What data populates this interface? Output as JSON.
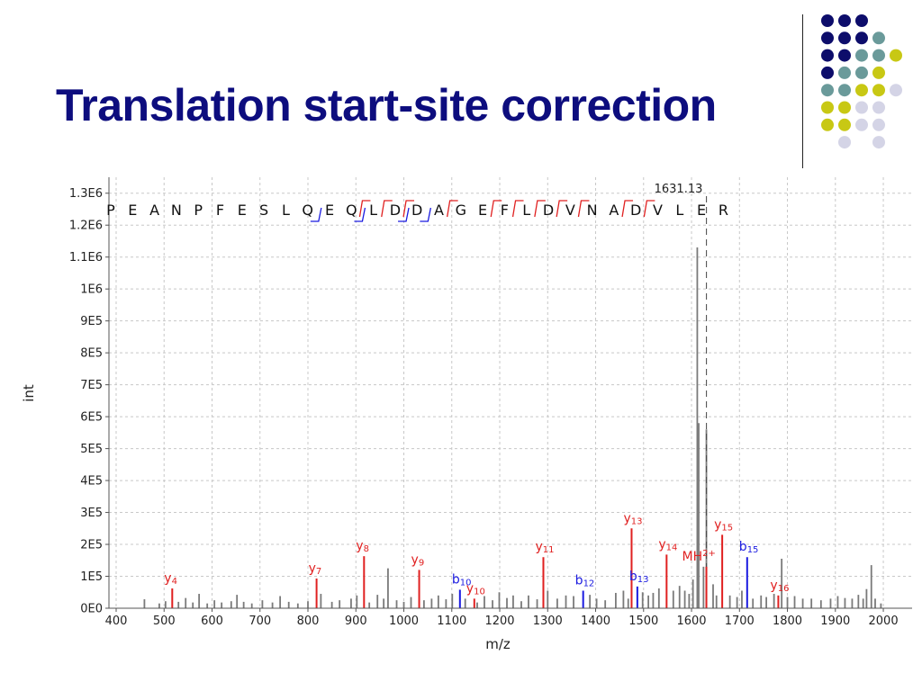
{
  "slide": {
    "title": "Translation start-site correction"
  },
  "decor": {
    "dot_colors": {
      "navy": "#0d0d6b",
      "teal": "#6a9a9a",
      "yellow": "#c8c814",
      "lavender": "#d4d4e6"
    },
    "dot_rows": [
      [
        "navy",
        "navy",
        "navy",
        null,
        null
      ],
      [
        "navy",
        "navy",
        "navy",
        "teal",
        null
      ],
      [
        "navy",
        "navy",
        "teal",
        "teal",
        "yellow"
      ],
      [
        "navy",
        "teal",
        "teal",
        "yellow",
        null
      ],
      [
        "teal",
        "teal",
        "yellow",
        "yellow",
        "lavender"
      ],
      [
        "yellow",
        "yellow",
        "lavender",
        "lavender",
        null
      ],
      [
        "yellow",
        "yellow",
        "lavender",
        "lavender",
        null
      ],
      [
        null,
        "lavender",
        null,
        "lavender",
        null
      ]
    ]
  },
  "chart_data": {
    "type": "bar",
    "title": "",
    "xlabel": "m/z",
    "ylabel": "int",
    "xlim": [
      385,
      2060
    ],
    "ylim": [
      0,
      1350000
    ],
    "x_ticks": [
      400,
      500,
      600,
      700,
      800,
      900,
      1000,
      1100,
      1200,
      1300,
      1400,
      1500,
      1600,
      1700,
      1800,
      1900,
      2000
    ],
    "x_tick_labels": [
      "400",
      "500",
      "600",
      "700",
      "800",
      "900",
      "1000",
      "1100",
      "1200",
      "1300",
      "1400",
      "1500",
      "1600",
      "1700",
      "1800",
      "1900",
      "2000"
    ],
    "y_ticks": [
      0,
      100000,
      200000,
      300000,
      400000,
      500000,
      600000,
      700000,
      800000,
      900000,
      1000000,
      1100000,
      1200000,
      1300000
    ],
    "y_tick_labels": [
      "0E0",
      "1E5",
      "2E5",
      "3E5",
      "4E5",
      "5E5",
      "6E5",
      "7E5",
      "8E5",
      "9E5",
      "1E6",
      "1.1E6",
      "1.2E6",
      "1.3E6"
    ],
    "grid": true,
    "colors": {
      "y_ion": "#e02020",
      "b_ion": "#1a1ae0",
      "unmatched": "#7a7a7a",
      "axis": "#555555"
    },
    "precursor_marker": {
      "mz": 1631.13,
      "label": "1631.13"
    },
    "sequence": [
      "P",
      "E",
      "A",
      "N",
      "P",
      "F",
      "E",
      "S",
      "L",
      "Q",
      "E",
      "Q",
      "L",
      "D",
      "D",
      "A",
      "G",
      "E",
      "F",
      "L",
      "D",
      "V",
      "N",
      "A",
      "D",
      "V",
      "L",
      "E",
      "R"
    ],
    "b_breaks_after": [
      10,
      12,
      14,
      15
    ],
    "y_breaks_before": [
      13,
      14,
      15,
      17,
      19,
      20,
      21,
      22,
      23,
      25,
      26
    ],
    "matched_peaks": [
      {
        "ion": "y",
        "num": "4",
        "mz": 517,
        "intensity": 62000,
        "text": "y",
        "sub": "4"
      },
      {
        "ion": "y",
        "num": "7",
        "mz": 818,
        "intensity": 93000,
        "text": "y",
        "sub": "7"
      },
      {
        "ion": "y",
        "num": "8",
        "mz": 917,
        "intensity": 163000,
        "text": "y",
        "sub": "8"
      },
      {
        "ion": "y",
        "num": "9",
        "mz": 1032,
        "intensity": 120000,
        "text": "y",
        "sub": "9"
      },
      {
        "ion": "b",
        "num": "10",
        "mz": 1117,
        "intensity": 58000,
        "text": "b",
        "sub": "10"
      },
      {
        "ion": "y",
        "num": "10",
        "mz": 1147,
        "intensity": 30000,
        "text": "y",
        "sub": "10"
      },
      {
        "ion": "y",
        "num": "11",
        "mz": 1291,
        "intensity": 160000,
        "text": "y",
        "sub": "11"
      },
      {
        "ion": "b",
        "num": "12",
        "mz": 1374,
        "intensity": 55000,
        "text": "b",
        "sub": "12"
      },
      {
        "ion": "y",
        "num": "13",
        "mz": 1475,
        "intensity": 250000,
        "text": "y",
        "sub": "13"
      },
      {
        "ion": "b",
        "num": "13",
        "mz": 1487,
        "intensity": 68000,
        "text": "b",
        "sub": "13"
      },
      {
        "ion": "y",
        "num": "14",
        "mz": 1548,
        "intensity": 168000,
        "text": "y",
        "sub": "14"
      },
      {
        "ion": "MH",
        "num": "2+",
        "mz": 1631,
        "intensity": 130000,
        "text": "MH",
        "sub": "2+"
      },
      {
        "ion": "y",
        "num": "15",
        "mz": 1664,
        "intensity": 230000,
        "text": "y",
        "sub": "15"
      },
      {
        "ion": "b",
        "num": "15",
        "mz": 1716,
        "intensity": 160000,
        "text": "b",
        "sub": "15"
      },
      {
        "ion": "y",
        "num": "16",
        "mz": 1781,
        "intensity": 40000,
        "text": "y",
        "sub": "16"
      }
    ],
    "unmatched_peaks": [
      [
        459,
        28000
      ],
      [
        490,
        15000
      ],
      [
        503,
        22000
      ],
      [
        530,
        20000
      ],
      [
        545,
        32000
      ],
      [
        560,
        18000
      ],
      [
        573,
        45000
      ],
      [
        590,
        15000
      ],
      [
        605,
        25000
      ],
      [
        620,
        18000
      ],
      [
        640,
        22000
      ],
      [
        652,
        42000
      ],
      [
        666,
        20000
      ],
      [
        683,
        15000
      ],
      [
        705,
        25000
      ],
      [
        726,
        18000
      ],
      [
        742,
        38000
      ],
      [
        760,
        20000
      ],
      [
        779,
        15000
      ],
      [
        800,
        22000
      ],
      [
        827,
        45000
      ],
      [
        850,
        20000
      ],
      [
        866,
        25000
      ],
      [
        890,
        30000
      ],
      [
        902,
        40000
      ],
      [
        928,
        18000
      ],
      [
        945,
        42000
      ],
      [
        958,
        30000
      ],
      [
        967,
        125000
      ],
      [
        985,
        25000
      ],
      [
        1000,
        20000
      ],
      [
        1015,
        35000
      ],
      [
        1042,
        25000
      ],
      [
        1058,
        30000
      ],
      [
        1072,
        40000
      ],
      [
        1088,
        28000
      ],
      [
        1101,
        45000
      ],
      [
        1128,
        30000
      ],
      [
        1153,
        18000
      ],
      [
        1168,
        38000
      ],
      [
        1185,
        25000
      ],
      [
        1199,
        50000
      ],
      [
        1215,
        32000
      ],
      [
        1228,
        40000
      ],
      [
        1245,
        22000
      ],
      [
        1260,
        40000
      ],
      [
        1278,
        28000
      ],
      [
        1300,
        55000
      ],
      [
        1320,
        30000
      ],
      [
        1338,
        40000
      ],
      [
        1354,
        38000
      ],
      [
        1388,
        42000
      ],
      [
        1402,
        30000
      ],
      [
        1420,
        25000
      ],
      [
        1442,
        48000
      ],
      [
        1458,
        55000
      ],
      [
        1468,
        30000
      ],
      [
        1498,
        50000
      ],
      [
        1510,
        40000
      ],
      [
        1520,
        48000
      ],
      [
        1532,
        62000
      ],
      [
        1562,
        55000
      ],
      [
        1575,
        70000
      ],
      [
        1586,
        55000
      ],
      [
        1595,
        45000
      ],
      [
        1603,
        90000
      ],
      [
        1612,
        1130000
      ],
      [
        1615,
        580000
      ],
      [
        1625,
        130000
      ],
      [
        1631,
        560000
      ],
      [
        1645,
        75000
      ],
      [
        1652,
        40000
      ],
      [
        1680,
        40000
      ],
      [
        1695,
        35000
      ],
      [
        1705,
        55000
      ],
      [
        1728,
        30000
      ],
      [
        1745,
        40000
      ],
      [
        1756,
        35000
      ],
      [
        1772,
        45000
      ],
      [
        1788,
        155000
      ],
      [
        1800,
        35000
      ],
      [
        1815,
        38000
      ],
      [
        1832,
        30000
      ],
      [
        1850,
        30000
      ],
      [
        1870,
        25000
      ],
      [
        1890,
        30000
      ],
      [
        1905,
        38000
      ],
      [
        1920,
        32000
      ],
      [
        1935,
        30000
      ],
      [
        1948,
        42000
      ],
      [
        1958,
        30000
      ],
      [
        1965,
        60000
      ],
      [
        1975,
        135000
      ],
      [
        1983,
        30000
      ],
      [
        1995,
        15000
      ]
    ]
  }
}
